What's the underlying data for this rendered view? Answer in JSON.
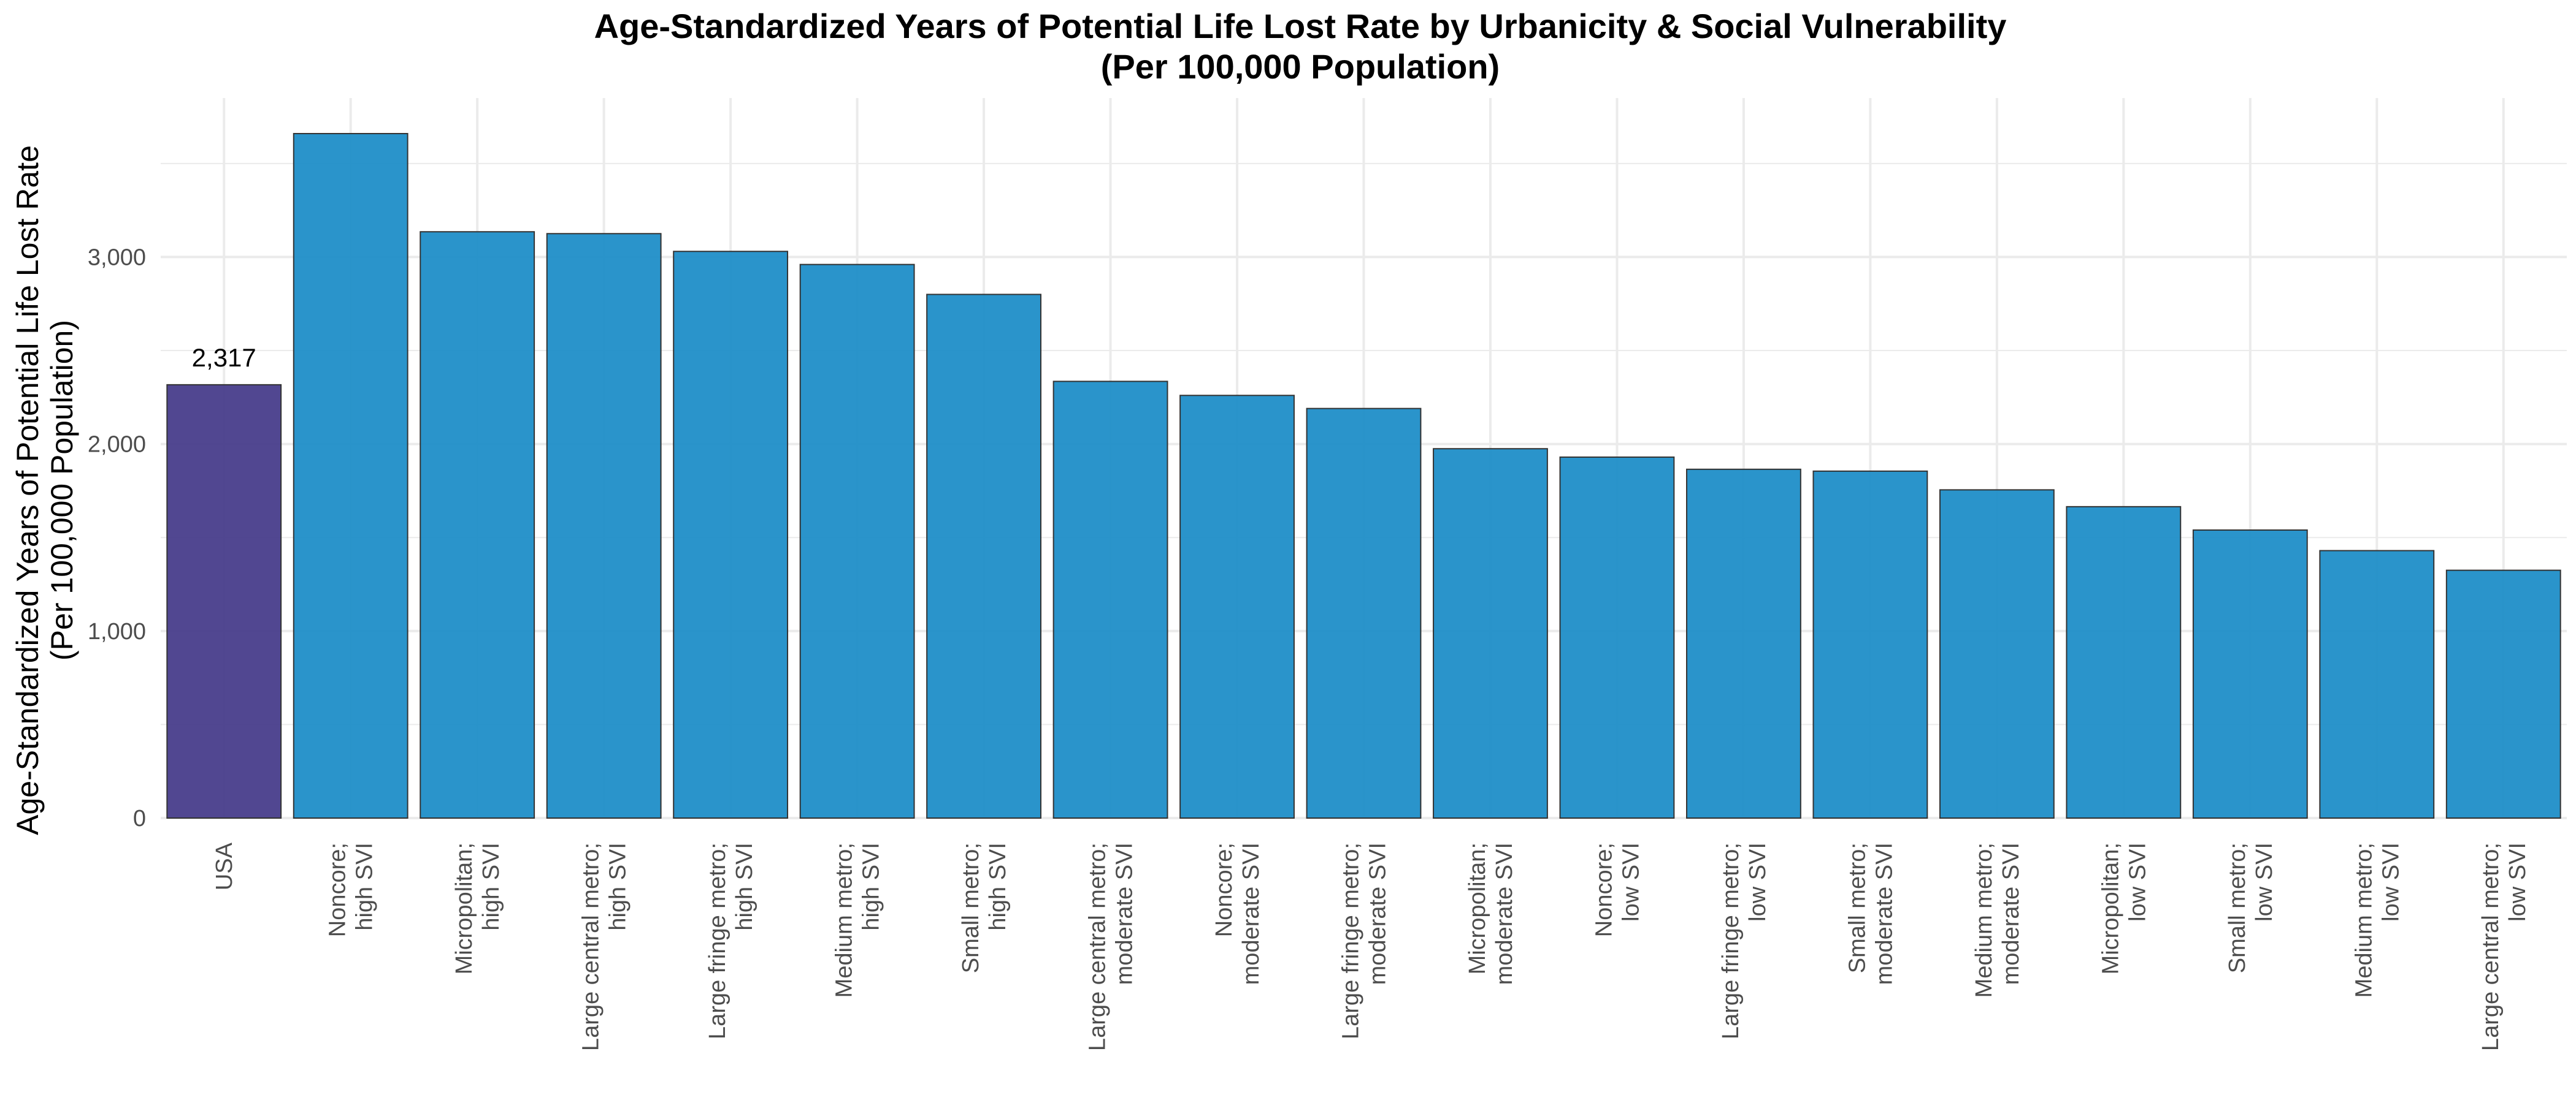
{
  "chart_data": {
    "type": "bar",
    "title": "Age-Standardized Years of Potential Life Lost Rate by Urbanicity & Social Vulnerability",
    "subtitle": "(Per 100,000 Population)",
    "xlabel": "",
    "ylabel": "Age-Standardized Years of Potential Life Lost Rate",
    "ylabel_line2": "(Per 100,000 Population)",
    "ylim": [
      0,
      3850
    ],
    "yticks": [
      0,
      1000,
      2000,
      3000
    ],
    "ytick_labels": [
      "0",
      "1,000",
      "2,000",
      "3,000"
    ],
    "grid": true,
    "colors": {
      "highlight": "#483d8b",
      "default": "#1f8ec8",
      "bar_outline": "#333333",
      "grid": "#ebebeb"
    },
    "categories": [
      [
        "USA"
      ],
      [
        "Noncore;",
        "high SVI"
      ],
      [
        "Micropolitan;",
        "high SVI"
      ],
      [
        "Large central metro;",
        "high SVI"
      ],
      [
        "Large fringe metro;",
        "high SVI"
      ],
      [
        "Medium metro;",
        "high SVI"
      ],
      [
        "Small metro;",
        "high SVI"
      ],
      [
        "Large central metro;",
        "moderate SVI"
      ],
      [
        "Noncore;",
        "moderate SVI"
      ],
      [
        "Large fringe metro;",
        "moderate SVI"
      ],
      [
        "Micropolitan;",
        "moderate SVI"
      ],
      [
        "Noncore;",
        "low SVI"
      ],
      [
        "Large fringe metro;",
        "low SVI"
      ],
      [
        "Small metro;",
        "moderate SVI"
      ],
      [
        "Medium metro;",
        "moderate SVI"
      ],
      [
        "Micropolitan;",
        "low SVI"
      ],
      [
        "Small metro;",
        "low SVI"
      ],
      [
        "Medium metro;",
        "low SVI"
      ],
      [
        "Large central metro;",
        "low SVI"
      ]
    ],
    "values": [
      2317,
      3660,
      3135,
      3125,
      3030,
      2960,
      2800,
      2335,
      2260,
      2190,
      1975,
      1930,
      1865,
      1855,
      1755,
      1665,
      1540,
      1430,
      1325
    ],
    "highlight_index": 0,
    "data_labels": [
      {
        "index": 0,
        "text": "2,317"
      }
    ]
  }
}
